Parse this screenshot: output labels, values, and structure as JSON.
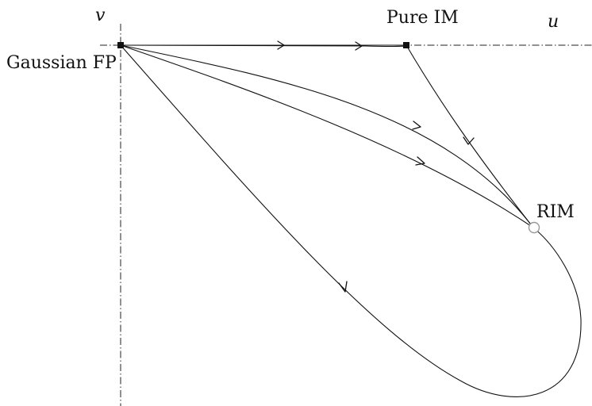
{
  "labels": {
    "axis_v": "v",
    "axis_u": "u",
    "gaussian_fp": "Gaussian FP",
    "pure_im": "Pure IM",
    "rim": "RIM"
  },
  "fixed_points": [
    {
      "name": "Gaussian FP",
      "style": "filled-square"
    },
    {
      "name": "Pure IM",
      "style": "filled-square"
    },
    {
      "name": "RIM",
      "style": "open-circle"
    }
  ]
}
